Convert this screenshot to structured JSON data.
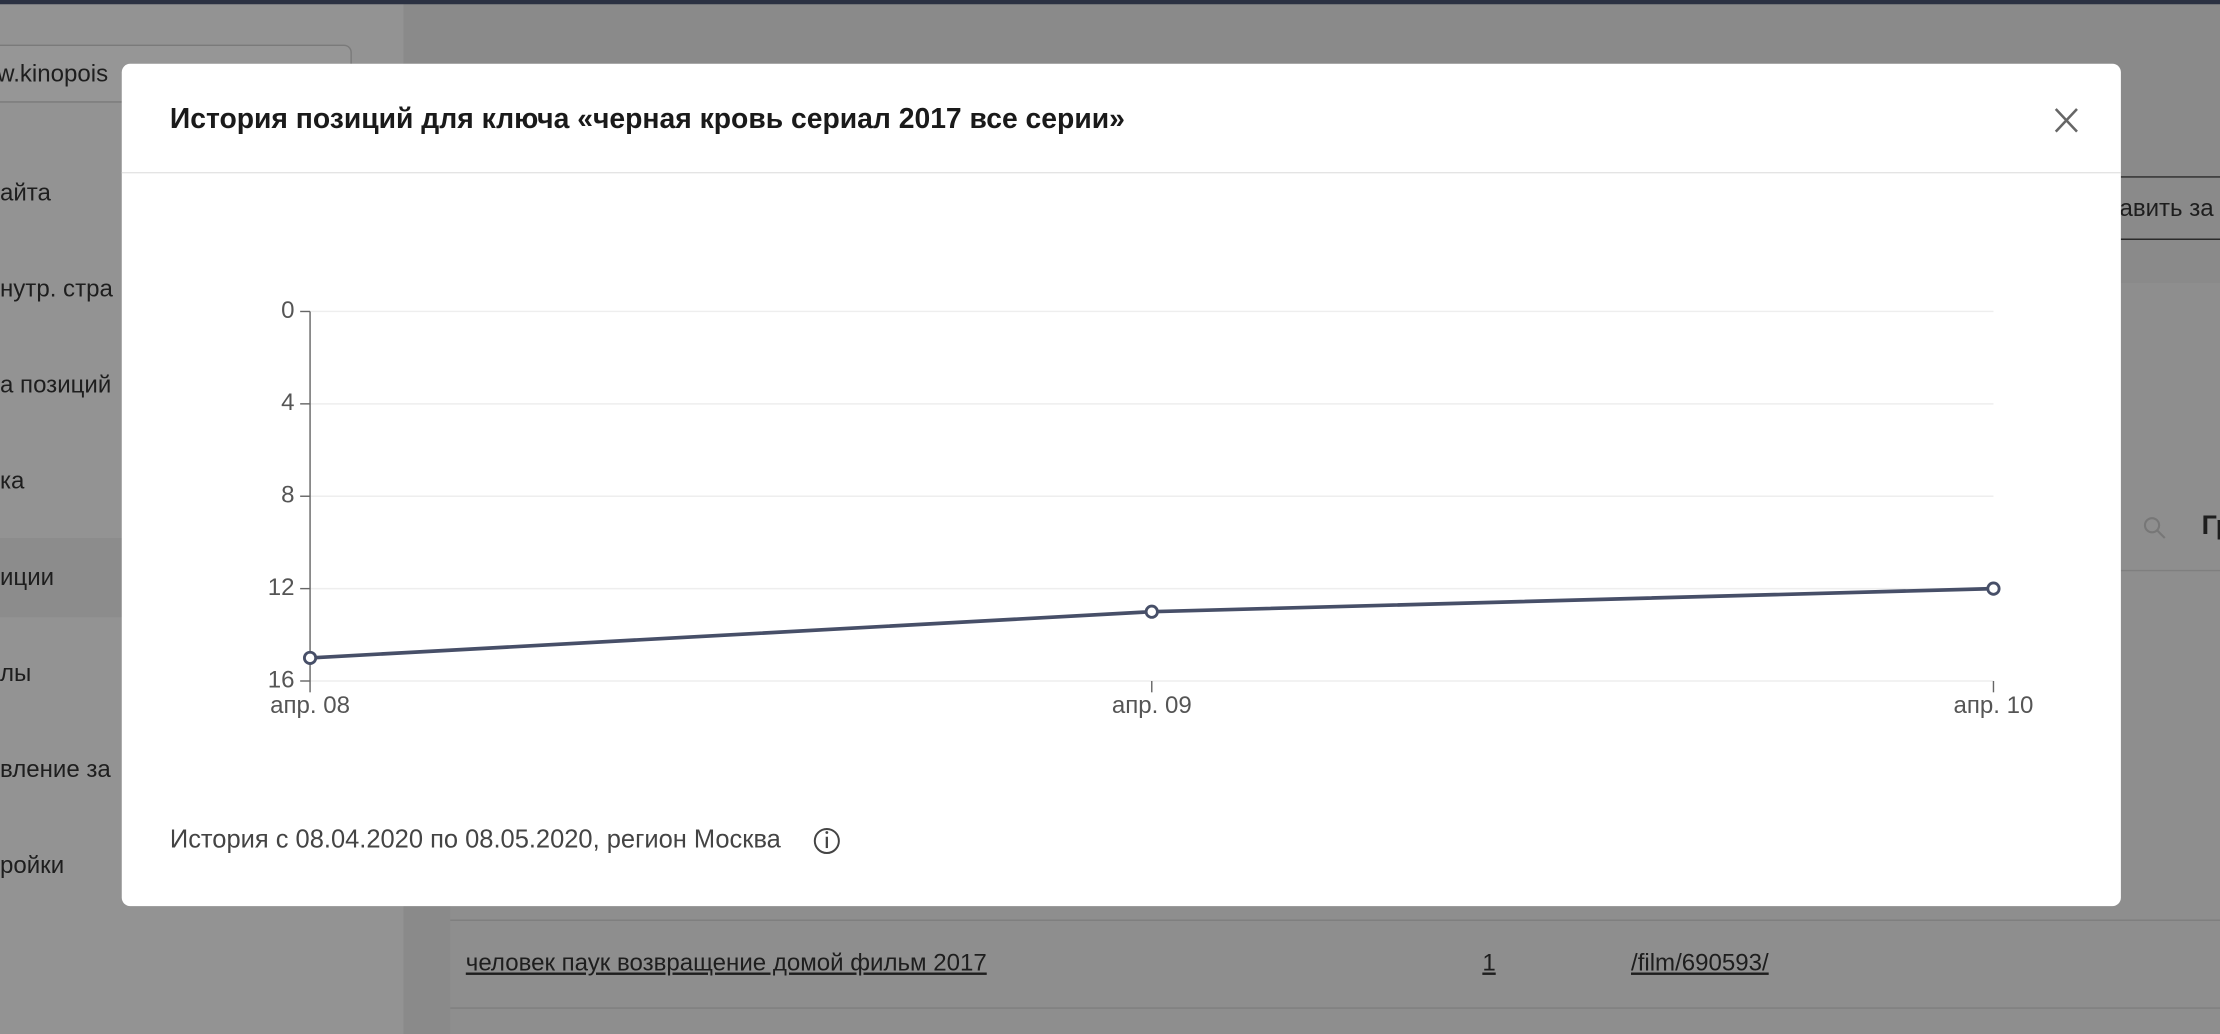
{
  "background": {
    "site_input": "w.kinopois",
    "menu": [
      "айта",
      "нутр. стра",
      "а позиций",
      "ка",
      "иции",
      "лы",
      "вление за",
      "ройки"
    ],
    "button": "авить за",
    "table_header": "Гр",
    "row": [
      "человек паук возвращение домой фильм 2017",
      "1",
      "/film/690593/"
    ]
  },
  "modal": {
    "title": "История позиций для ключа «черная кровь сериал 2017 все серии»",
    "footer": "История с 08.04.2020 по 08.05.2020, регион Москва"
  },
  "chart_data": {
    "type": "line",
    "categories": [
      "апр. 08",
      "апр. 09",
      "апр. 10"
    ],
    "values": [
      15,
      13,
      12
    ],
    "color": "#474f68",
    "ylim": [
      0,
      16
    ],
    "yticks": [
      0,
      4,
      8,
      12,
      16
    ],
    "y_inverted": true,
    "grid": true
  }
}
